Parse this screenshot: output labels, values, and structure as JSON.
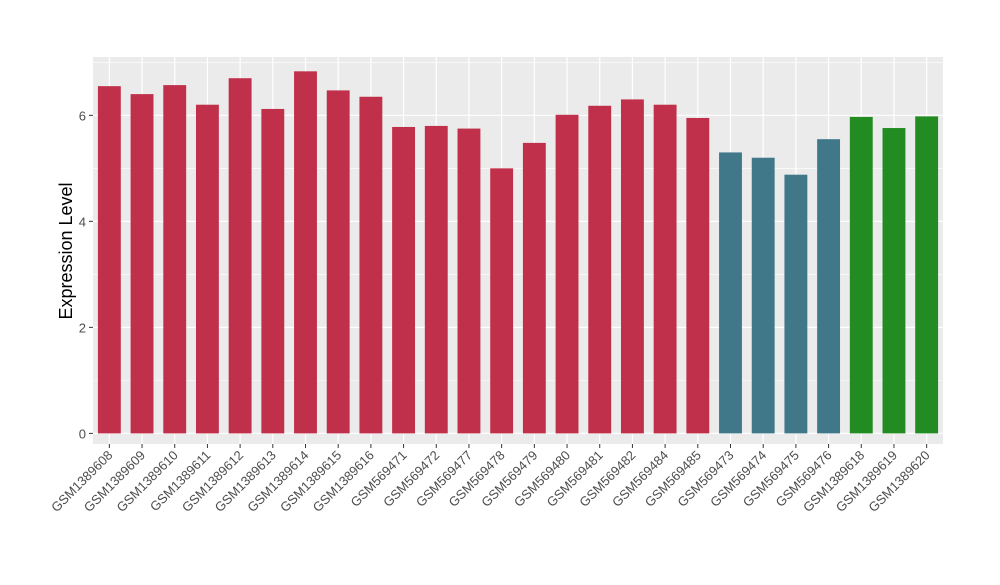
{
  "chart_data": {
    "type": "bar",
    "title": "",
    "xlabel": "",
    "ylabel": "Expression Level",
    "ylim": [
      -0.2,
      7.1
    ],
    "yticks": [
      0,
      2,
      4,
      6
    ],
    "grid": true,
    "legend": "none",
    "panel_background": "#ebebeb",
    "gridline_color": "#ffffff",
    "categories": [
      "GSM1389608",
      "GSM1389609",
      "GSM1389610",
      "GSM1389611",
      "GSM1389612",
      "GSM1389613",
      "GSM1389614",
      "GSM1389615",
      "GSM1389616",
      "GSM569471",
      "GSM569472",
      "GSM569477",
      "GSM569478",
      "GSM569479",
      "GSM569480",
      "GSM569481",
      "GSM569482",
      "GSM569484",
      "GSM569485",
      "GSM569473",
      "GSM569474",
      "GSM569475",
      "GSM569476",
      "GSM1389618",
      "GSM1389619",
      "GSM1389620"
    ],
    "values": [
      6.55,
      6.4,
      6.57,
      6.2,
      6.7,
      6.12,
      6.83,
      6.47,
      6.35,
      5.78,
      5.8,
      5.75,
      5.0,
      5.48,
      6.01,
      6.18,
      6.3,
      6.2,
      5.95,
      5.3,
      5.2,
      4.88,
      5.55,
      5.97,
      5.76,
      5.98
    ],
    "bar_colors": [
      "#c0304a",
      "#c0304a",
      "#c0304a",
      "#c0304a",
      "#c0304a",
      "#c0304a",
      "#c0304a",
      "#c0304a",
      "#c0304a",
      "#c0304a",
      "#c0304a",
      "#c0304a",
      "#c0304a",
      "#c0304a",
      "#c0304a",
      "#c0304a",
      "#c0304a",
      "#c0304a",
      "#c0304a",
      "#40788a",
      "#40788a",
      "#40788a",
      "#40788a",
      "#228b22",
      "#228b22",
      "#228b22"
    ]
  }
}
